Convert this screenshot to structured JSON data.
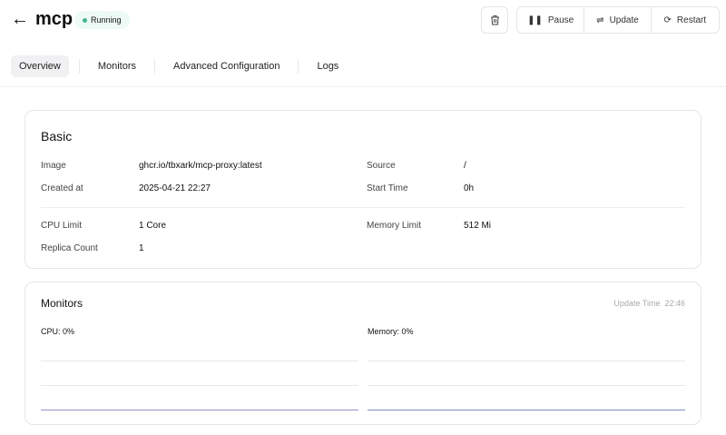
{
  "header": {
    "title": "mcp",
    "status": "Running",
    "status_color": "#3fb58a",
    "actions": {
      "pause": "Pause",
      "update": "Update",
      "restart": "Restart"
    }
  },
  "tabs": [
    {
      "label": "Overview",
      "active": true
    },
    {
      "label": "Monitors"
    },
    {
      "label": "Advanced Configuration"
    },
    {
      "label": "Logs"
    }
  ],
  "basic": {
    "title": "Basic",
    "image_label": "Image",
    "image": "ghcr.io/tbxark/mcp-proxy:latest",
    "source_label": "Source",
    "source": "/",
    "created_label": "Created at",
    "created": "2025-04-21 22:27",
    "start_label": "Start Time",
    "start": "0h",
    "cpu_label": "CPU Limit",
    "cpu": "1 Core",
    "mem_label": "Memory Limit",
    "mem": "512 Mi",
    "replica_label": "Replica Count",
    "replica": "1"
  },
  "monitors": {
    "title": "Monitors",
    "update_label": "Update Time",
    "update_time": "22:46",
    "cpu_label": "CPU:",
    "cpu_value": "0%",
    "mem_label": "Memory:",
    "mem_value": "0%",
    "cpu_color": "#9b8fc4",
    "mem_color": "#7e8fc4"
  }
}
